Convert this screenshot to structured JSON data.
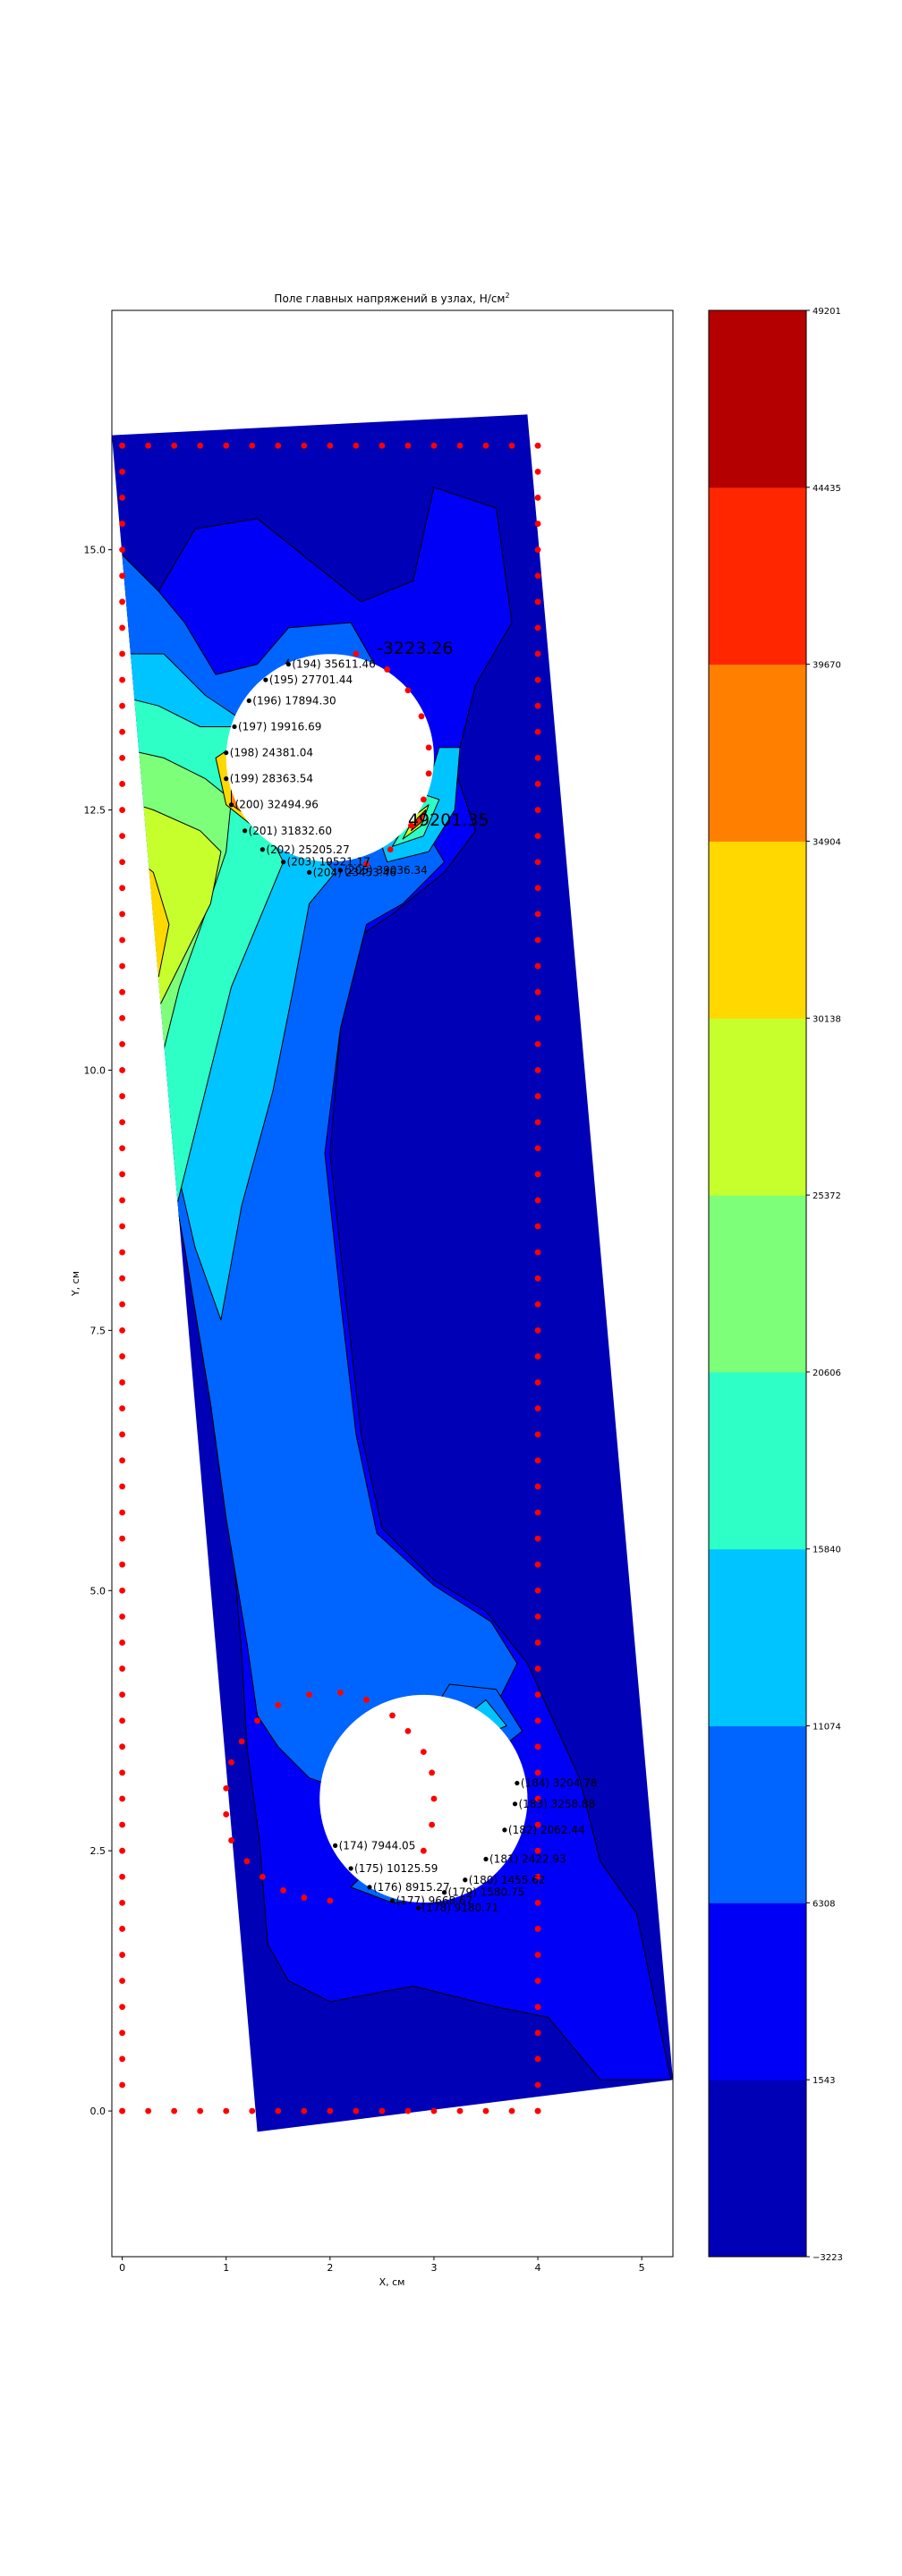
{
  "chart_data": {
    "type": "heatmap",
    "title": "Поле главных напряжений в узлах, Н/см",
    "title_superscript": "2",
    "xlabel": "X, см",
    "ylabel": "Y, см",
    "xlim": [
      -0.1,
      5.3
    ],
    "ylim": [
      -1.4,
      17.3
    ],
    "xticks": [
      0,
      1,
      2,
      3,
      4,
      5
    ],
    "yticks": [
      0.0,
      2.5,
      5.0,
      7.5,
      10.0,
      12.5,
      15.0
    ],
    "ytick_labels": [
      "0.0",
      "2.5",
      "5.0",
      "7.5",
      "10.0",
      "12.5",
      "15.0"
    ],
    "grid": false,
    "colormap": "jet",
    "colorbar": {
      "levels": [
        -3223,
        1543,
        6308,
        11074,
        15840,
        20606,
        25372,
        30138,
        34904,
        39670,
        44435,
        49201
      ],
      "labels": [
        "−3223",
        "1543",
        "6308",
        "11074",
        "15840",
        "20606",
        "25372",
        "30138",
        "34904",
        "39670",
        "44435",
        "49201"
      ],
      "colors": [
        "#0000b7",
        "#0000f7",
        "#0065ff",
        "#00c4ff",
        "#2dffc7",
        "#7dff7a",
        "#c7ff2d",
        "#ffd800",
        "#ff8000",
        "#ff2600",
        "#b50000"
      ]
    },
    "colors": {
      "node_marker": "#ff0000",
      "labelled_node": "#000000",
      "contour_line": "#000000"
    },
    "domain_outline": [
      [
        -0.1,
        16.1
      ],
      [
        3.9,
        16.3
      ],
      [
        5.3,
        0.3
      ],
      [
        1.3,
        -0.2
      ]
    ],
    "holes": [
      {
        "cx": 2.0,
        "cy": 13.0,
        "r": 1.0
      },
      {
        "cx": 2.9,
        "cy": 3.0,
        "r": 1.0
      }
    ],
    "boundary_nodes_y": [
      0,
      0.25,
      0.5,
      0.75,
      1.0,
      1.25,
      1.5,
      1.75,
      2.0,
      2.25,
      2.5,
      2.75,
      3.0,
      3.25,
      3.5,
      3.75,
      4.0,
      4.25,
      4.5,
      4.75,
      5.0,
      5.25,
      5.5,
      5.75,
      6.0,
      6.25,
      6.5,
      6.75,
      7.0,
      7.25,
      7.5,
      7.75,
      8.0,
      8.25,
      8.5,
      8.75,
      9.0,
      9.25,
      9.5,
      9.75,
      10.0,
      10.25,
      10.5,
      10.75,
      11.0,
      11.25,
      11.5,
      11.75,
      12.0,
      12.25,
      12.5,
      12.75,
      13.0,
      13.25,
      13.5,
      13.75,
      14.0,
      14.25,
      14.5,
      14.75,
      15.0,
      15.25,
      15.5,
      15.75,
      16.0
    ],
    "boundary_nodes_x": [
      0,
      0.25,
      0.5,
      0.75,
      1.0,
      1.25,
      1.5,
      1.75,
      2.0,
      2.25,
      2.5,
      2.75,
      3.0,
      3.25,
      3.5,
      3.75,
      4.0
    ],
    "upper_hole_nodes": [
      {
        "x": 1.6,
        "y": 13.9,
        "label": "(194) 35611.46"
      },
      {
        "x": 1.38,
        "y": 13.75,
        "label": "(195) 27701.44"
      },
      {
        "x": 1.22,
        "y": 13.55,
        "label": "(196) 17894.30"
      },
      {
        "x": 1.08,
        "y": 13.3,
        "label": "(197) 19916.69"
      },
      {
        "x": 1.0,
        "y": 13.05,
        "label": "(198) 24381.04"
      },
      {
        "x": 1.0,
        "y": 12.8,
        "label": "(199) 28363.54"
      },
      {
        "x": 1.05,
        "y": 12.55,
        "label": "(200) 32494.96"
      },
      {
        "x": 1.18,
        "y": 12.3,
        "label": "(201) 31832.60"
      },
      {
        "x": 1.35,
        "y": 12.12,
        "label": "(202) 25205.27"
      },
      {
        "x": 1.55,
        "y": 12.0,
        "label": "(203) 19521.17"
      },
      {
        "x": 1.8,
        "y": 11.9,
        "label": "(204) 23453.46"
      },
      {
        "x": 2.1,
        "y": 11.92,
        "label": "(205) 39036.34"
      },
      {
        "x": 2.25,
        "y": 14.0,
        "label": ""
      },
      {
        "x": 2.55,
        "y": 13.85,
        "label": ""
      },
      {
        "x": 2.75,
        "y": 13.65,
        "label": ""
      },
      {
        "x": 2.88,
        "y": 13.4,
        "label": ""
      },
      {
        "x": 2.95,
        "y": 13.1,
        "label": ""
      },
      {
        "x": 2.95,
        "y": 12.85,
        "label": ""
      },
      {
        "x": 2.9,
        "y": 12.6,
        "label": ""
      },
      {
        "x": 2.78,
        "y": 12.35,
        "label": ""
      },
      {
        "x": 2.58,
        "y": 12.12,
        "label": ""
      },
      {
        "x": 2.35,
        "y": 11.98,
        "label": ""
      }
    ],
    "lower_hole_nodes": [
      {
        "x": 2.05,
        "y": 2.55,
        "label": "(174) 7944.05"
      },
      {
        "x": 2.2,
        "y": 2.33,
        "label": "(175) 10125.59"
      },
      {
        "x": 2.38,
        "y": 2.15,
        "label": "(176) 8915.27"
      },
      {
        "x": 2.6,
        "y": 2.02,
        "label": "(177) 9668.67"
      },
      {
        "x": 2.85,
        "y": 1.95,
        "label": "(178) 9180.71"
      },
      {
        "x": 3.1,
        "y": 2.1,
        "label": "(179) 1580.75"
      },
      {
        "x": 3.3,
        "y": 2.22,
        "label": "(180) 1455.62"
      },
      {
        "x": 3.5,
        "y": 2.42,
        "label": "(181) 2422.93"
      },
      {
        "x": 3.68,
        "y": 2.7,
        "label": "(182) 2062.44"
      },
      {
        "x": 3.78,
        "y": 2.95,
        "label": "(183) 3258.88"
      },
      {
        "x": 3.8,
        "y": 3.15,
        "label": "(184) 3204.78"
      },
      {
        "x": 1.3,
        "y": 3.75,
        "label": ""
      },
      {
        "x": 1.15,
        "y": 3.55,
        "label": ""
      },
      {
        "x": 1.05,
        "y": 3.35,
        "label": ""
      },
      {
        "x": 1.0,
        "y": 3.1,
        "label": ""
      },
      {
        "x": 1.0,
        "y": 2.85,
        "label": ""
      },
      {
        "x": 1.05,
        "y": 2.6,
        "label": ""
      },
      {
        "x": 1.2,
        "y": 2.4,
        "label": ""
      },
      {
        "x": 1.35,
        "y": 2.25,
        "label": ""
      },
      {
        "x": 1.55,
        "y": 2.12,
        "label": ""
      },
      {
        "x": 1.75,
        "y": 2.05,
        "label": ""
      },
      {
        "x": 2.0,
        "y": 2.02,
        "label": ""
      },
      {
        "x": 1.5,
        "y": 3.9,
        "label": ""
      },
      {
        "x": 1.8,
        "y": 4.0,
        "label": ""
      },
      {
        "x": 2.1,
        "y": 4.02,
        "label": ""
      },
      {
        "x": 2.35,
        "y": 3.95,
        "label": ""
      },
      {
        "x": 2.6,
        "y": 3.8,
        "label": ""
      },
      {
        "x": 2.75,
        "y": 3.65,
        "label": ""
      },
      {
        "x": 2.9,
        "y": 3.45,
        "label": ""
      },
      {
        "x": 2.98,
        "y": 3.25,
        "label": ""
      },
      {
        "x": 3.0,
        "y": 3.0,
        "label": ""
      },
      {
        "x": 2.98,
        "y": 2.75,
        "label": ""
      },
      {
        "x": 2.9,
        "y": 2.5,
        "label": ""
      }
    ],
    "annotations": [
      {
        "x": 2.45,
        "y": 14.0,
        "text": "-3223.26"
      },
      {
        "x": 2.75,
        "y": 12.35,
        "text": "49201.35"
      }
    ],
    "contour_regions": [
      {
        "level": 1,
        "poly": [
          [
            -0.1,
            16.0
          ],
          [
            -0.05,
            15.0
          ],
          [
            0.35,
            14.6
          ],
          [
            0.7,
            15.2
          ],
          [
            1.3,
            15.3
          ],
          [
            1.8,
            14.9
          ],
          [
            2.3,
            14.5
          ],
          [
            2.8,
            14.7
          ],
          [
            3.0,
            15.6
          ],
          [
            3.6,
            15.4
          ],
          [
            3.75,
            14.3
          ],
          [
            3.4,
            13.7
          ],
          [
            3.2,
            12.9
          ],
          [
            3.4,
            12.3
          ],
          [
            3.1,
            11.9
          ],
          [
            2.6,
            11.5
          ],
          [
            2.3,
            11.3
          ],
          [
            2.1,
            10.4
          ],
          [
            2.0,
            9.2
          ],
          [
            2.15,
            7.8
          ],
          [
            2.3,
            6.5
          ],
          [
            2.5,
            5.6
          ],
          [
            3.0,
            5.1
          ],
          [
            3.5,
            4.8
          ],
          [
            3.9,
            4.3
          ],
          [
            4.4,
            3.2
          ],
          [
            4.6,
            2.4
          ],
          [
            4.95,
            1.9
          ],
          [
            5.28,
            0.3
          ],
          [
            4.6,
            0.3
          ],
          [
            4.1,
            0.9
          ],
          [
            3.6,
            1.0
          ],
          [
            2.8,
            1.2
          ],
          [
            2.0,
            1.05
          ],
          [
            1.6,
            1.25
          ],
          [
            1.4,
            1.6
          ],
          [
            1.32,
            2.6
          ],
          [
            1.2,
            3.5
          ],
          [
            1.15,
            4.4
          ],
          [
            1.05,
            5.6
          ],
          [
            0.85,
            6.8
          ],
          [
            0.6,
            8.3
          ],
          [
            0.35,
            9.6
          ],
          [
            0.1,
            11.2
          ],
          [
            -0.05,
            12.8
          ],
          [
            -0.1,
            14.5
          ]
        ]
      },
      {
        "level": 2,
        "poly": [
          [
            -0.05,
            15.0
          ],
          [
            0.35,
            14.6
          ],
          [
            0.6,
            14.3
          ],
          [
            0.9,
            13.8
          ],
          [
            1.3,
            13.9
          ],
          [
            1.6,
            14.25
          ],
          [
            2.2,
            14.3
          ],
          [
            2.6,
            13.6
          ],
          [
            2.8,
            12.5
          ],
          [
            3.1,
            12.0
          ],
          [
            2.7,
            11.6
          ],
          [
            2.35,
            11.4
          ],
          [
            2.1,
            10.4
          ],
          [
            1.95,
            9.2
          ],
          [
            2.1,
            7.8
          ],
          [
            2.25,
            6.5
          ],
          [
            2.45,
            5.55
          ],
          [
            3.0,
            5.05
          ],
          [
            3.55,
            4.7
          ],
          [
            3.8,
            4.3
          ],
          [
            3.6,
            3.9
          ],
          [
            2.9,
            3.5
          ],
          [
            2.4,
            3.0
          ],
          [
            1.8,
            3.2
          ],
          [
            1.5,
            3.5
          ],
          [
            1.3,
            3.8
          ],
          [
            1.2,
            4.5
          ],
          [
            1.0,
            5.7
          ],
          [
            0.85,
            6.8
          ],
          [
            0.6,
            8.3
          ],
          [
            0.35,
            9.6
          ],
          [
            0.1,
            11.2
          ],
          [
            -0.05,
            12.8
          ]
        ]
      },
      {
        "level": 3,
        "poly": [
          [
            -0.05,
            14.0
          ],
          [
            0.4,
            14.0
          ],
          [
            0.8,
            13.6
          ],
          [
            1.1,
            13.4
          ],
          [
            1.5,
            13.6
          ],
          [
            1.7,
            13.1
          ],
          [
            1.6,
            12.6
          ],
          [
            1.8,
            12.2
          ],
          [
            2.05,
            11.9
          ],
          [
            1.8,
            11.6
          ],
          [
            1.65,
            10.8
          ],
          [
            1.45,
            9.8
          ],
          [
            1.15,
            8.7
          ],
          [
            0.95,
            7.6
          ],
          [
            0.7,
            8.3
          ],
          [
            0.4,
            9.6
          ],
          [
            0.15,
            11.2
          ],
          [
            -0.05,
            12.6
          ]
        ]
      },
      {
        "level": 4,
        "poly": [
          [
            -0.05,
            13.6
          ],
          [
            0.35,
            13.5
          ],
          [
            0.75,
            13.3
          ],
          [
            1.1,
            13.3
          ],
          [
            1.3,
            12.8
          ],
          [
            1.4,
            12.3
          ],
          [
            1.55,
            12.0
          ],
          [
            1.3,
            11.4
          ],
          [
            1.05,
            10.8
          ],
          [
            0.8,
            9.8
          ],
          [
            0.5,
            8.6
          ],
          [
            0.3,
            9.8
          ],
          [
            0.1,
            11.2
          ],
          [
            -0.05,
            12.6
          ]
        ]
      },
      {
        "level": 5,
        "poly": [
          [
            -0.05,
            13.1
          ],
          [
            0.4,
            13.0
          ],
          [
            0.8,
            12.8
          ],
          [
            1.05,
            12.6
          ],
          [
            1.0,
            12.1
          ],
          [
            0.8,
            11.5
          ],
          [
            0.55,
            10.8
          ],
          [
            0.4,
            10.2
          ],
          [
            0.25,
            10.5
          ],
          [
            0.1,
            11.3
          ],
          [
            -0.05,
            12.5
          ]
        ]
      },
      {
        "level": 6,
        "poly": [
          [
            -0.02,
            12.6
          ],
          [
            0.3,
            12.5
          ],
          [
            0.75,
            12.3
          ],
          [
            0.95,
            12.1
          ],
          [
            0.85,
            11.6
          ],
          [
            0.6,
            11.1
          ],
          [
            0.35,
            10.6
          ],
          [
            0.15,
            11.2
          ],
          [
            0.0,
            12.0
          ]
        ]
      },
      {
        "level": 7,
        "poly": [
          [
            0.05,
            12.1
          ],
          [
            0.3,
            11.9
          ],
          [
            0.45,
            11.4
          ],
          [
            0.35,
            10.9
          ],
          [
            0.2,
            11.0
          ],
          [
            0.1,
            11.5
          ]
        ]
      },
      {
        "level": 7,
        "poly": [
          [
            0.9,
            13.0
          ],
          [
            1.2,
            13.2
          ],
          [
            1.4,
            13.6
          ],
          [
            1.6,
            13.95
          ],
          [
            1.5,
            13.35
          ],
          [
            1.4,
            12.8
          ],
          [
            1.5,
            12.4
          ],
          [
            1.25,
            12.35
          ],
          [
            1.0,
            12.55
          ]
        ]
      },
      {
        "level": 8,
        "poly": [
          [
            1.05,
            12.85
          ],
          [
            1.2,
            12.7
          ],
          [
            1.2,
            12.45
          ],
          [
            1.05,
            12.55
          ]
        ]
      },
      {
        "level": 8,
        "poly": [
          [
            1.45,
            13.6
          ],
          [
            1.6,
            13.9
          ],
          [
            1.75,
            13.85
          ],
          [
            1.6,
            13.5
          ]
        ]
      },
      {
        "level": 3,
        "poly": [
          [
            2.55,
            12.0
          ],
          [
            2.95,
            12.1
          ],
          [
            3.2,
            12.5
          ],
          [
            3.25,
            13.1
          ],
          [
            3.05,
            13.1
          ],
          [
            2.9,
            12.6
          ],
          [
            2.75,
            12.3
          ],
          [
            2.5,
            12.15
          ]
        ]
      },
      {
        "level": 4,
        "poly": [
          [
            2.6,
            12.15
          ],
          [
            2.9,
            12.25
          ],
          [
            3.05,
            12.6
          ],
          [
            2.9,
            12.65
          ],
          [
            2.75,
            12.4
          ]
        ]
      },
      {
        "level": 6,
        "poly": [
          [
            2.7,
            12.22
          ],
          [
            2.88,
            12.35
          ],
          [
            2.95,
            12.55
          ],
          [
            2.82,
            12.45
          ]
        ]
      },
      {
        "level": 9,
        "poly": [
          [
            2.78,
            12.3
          ],
          [
            2.9,
            12.4
          ],
          [
            2.92,
            12.5
          ],
          [
            2.84,
            12.42
          ]
        ]
      },
      {
        "level": 2,
        "poly": [
          [
            2.2,
            2.15
          ],
          [
            2.6,
            2.0
          ],
          [
            3.0,
            2.05
          ],
          [
            2.8,
            2.35
          ],
          [
            2.4,
            2.35
          ]
        ]
      },
      {
        "level": 2,
        "poly": [
          [
            2.9,
            3.7
          ],
          [
            3.15,
            4.1
          ],
          [
            3.6,
            4.05
          ],
          [
            3.85,
            3.65
          ],
          [
            3.6,
            3.45
          ],
          [
            3.2,
            3.5
          ]
        ]
      },
      {
        "level": 3,
        "poly": [
          [
            3.25,
            3.75
          ],
          [
            3.5,
            3.95
          ],
          [
            3.7,
            3.7
          ],
          [
            3.45,
            3.6
          ]
        ]
      }
    ]
  }
}
